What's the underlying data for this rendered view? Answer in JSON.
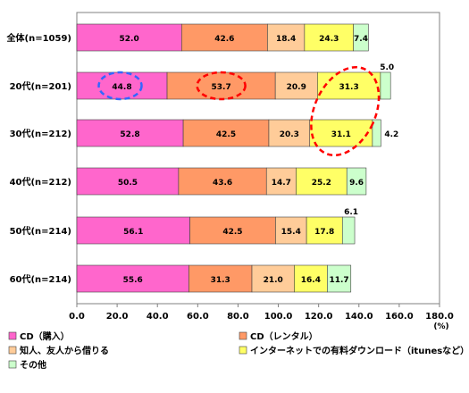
{
  "chart_data": {
    "type": "bar",
    "orientation": "horizontal",
    "stacked": true,
    "categories": [
      "全体(n=1059)",
      "20代(n=201)",
      "30代(n=212)",
      "40代(n=212)",
      "50代(n=214)",
      "60代(n=214)"
    ],
    "series": [
      {
        "name": "CD（購入）",
        "color": "#ff66cc",
        "values": [
          52.0,
          44.8,
          52.8,
          50.5,
          56.1,
          55.6
        ]
      },
      {
        "name": "CD（レンタル）",
        "color": "#ff9966",
        "values": [
          42.6,
          53.7,
          42.5,
          43.6,
          42.5,
          31.3
        ]
      },
      {
        "name": "知人、友人から借りる",
        "color": "#ffcc99",
        "values": [
          18.4,
          20.9,
          20.3,
          14.7,
          15.4,
          21.0
        ]
      },
      {
        "name": "インターネットでの有料ダウンロード（itunesなど）",
        "color": "#ffff66",
        "values": [
          24.3,
          31.3,
          31.1,
          25.2,
          17.8,
          16.4
        ]
      },
      {
        "name": "その他",
        "color": "#ccffcc",
        "values": [
          7.4,
          5.0,
          4.2,
          9.6,
          6.1,
          11.7
        ]
      }
    ],
    "value_labels": [
      [
        "52.0",
        "42.6",
        "18.4",
        "24.3",
        "7.4"
      ],
      [
        "44.8",
        "53.7",
        "20.9",
        "31.3",
        "5.0"
      ],
      [
        "52.8",
        "42.5",
        "20.3",
        "31.1",
        "4.2"
      ],
      [
        "50.5",
        "43.6",
        "14.7",
        "25.2",
        "9.6"
      ],
      [
        "56.1",
        "42.5",
        "15.4",
        "17.8",
        "6.1"
      ],
      [
        "55.6",
        "31.3",
        "21.0",
        "16.4",
        "11.7"
      ]
    ],
    "outside_labels": [
      false,
      true,
      true,
      false,
      true,
      false
    ],
    "xlim": [
      0,
      180
    ],
    "xticks": [
      "0.0",
      "20.0",
      "40.0",
      "60.0",
      "80.0",
      "100.0",
      "120.0",
      "140.0",
      "160.0",
      "180.0"
    ],
    "xunit": "(%)",
    "annotations": {
      "dashed_ellipses": [
        {
          "category_index": 1,
          "series_index": 0,
          "color": "#3366ff"
        },
        {
          "category_index": 1,
          "series_index": 1,
          "color": "#ff0000"
        },
        {
          "category_index_span": [
            1,
            2
          ],
          "series_index": 3,
          "color": "#ff0000"
        }
      ]
    },
    "legend_position": "bottom",
    "grid": false
  }
}
